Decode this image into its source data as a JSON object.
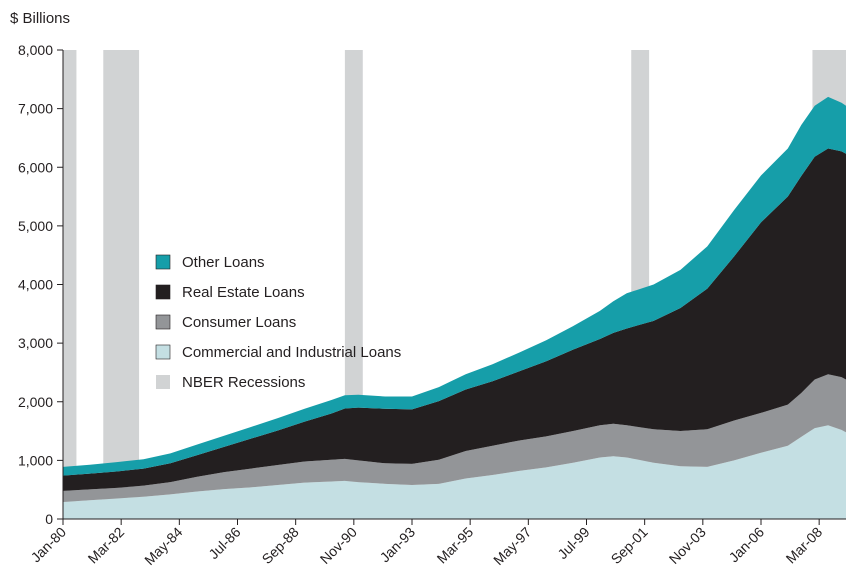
{
  "chart_data": {
    "type": "area",
    "stacked": true,
    "unit_label": "$ Billions",
    "ylim": [
      0,
      8000
    ],
    "y_ticks": [
      0,
      1000,
      2000,
      3000,
      4000,
      5000,
      6000,
      7000,
      8000
    ],
    "y_tick_labels": [
      "0",
      "1,000",
      "2,000",
      "3,000",
      "4,000",
      "5,000",
      "6,000",
      "7,000",
      "8,000"
    ],
    "x_range": [
      "1980-01",
      "2009-03"
    ],
    "x_tick_labels": [
      "Jan-80",
      "Mar-82",
      "May-84",
      "Jul-86",
      "Sep-88",
      "Nov-90",
      "Jan-93",
      "Mar-95",
      "May-97",
      "Jul-99",
      "Sep-01",
      "Nov-03",
      "Jan-06",
      "Mar-08"
    ],
    "x_ticks": [
      "1980-01",
      "1982-03",
      "1984-05",
      "1986-07",
      "1988-09",
      "1990-11",
      "1993-01",
      "1995-03",
      "1997-05",
      "1999-07",
      "2001-09",
      "2003-11",
      "2006-01",
      "2008-03"
    ],
    "grid": false,
    "legend_position": "center-left",
    "x": [
      "1980-01",
      "1981-01",
      "1982-01",
      "1983-01",
      "1984-01",
      "1985-01",
      "1986-01",
      "1987-01",
      "1988-01",
      "1989-01",
      "1990-01",
      "1990-07",
      "1991-01",
      "1992-01",
      "1993-01",
      "1994-01",
      "1995-01",
      "1996-01",
      "1997-01",
      "1998-01",
      "1999-01",
      "2000-01",
      "2000-07",
      "2001-01",
      "2002-01",
      "2003-01",
      "2004-01",
      "2005-01",
      "2006-01",
      "2007-01",
      "2007-07",
      "2008-01",
      "2008-07",
      "2009-01",
      "2009-03"
    ],
    "series": [
      {
        "name": "Commercial and Industrial Loans",
        "color": "#c4dfe3",
        "values": [
          290,
          320,
          350,
          380,
          420,
          470,
          510,
          540,
          580,
          620,
          640,
          650,
          630,
          600,
          580,
          600,
          690,
          750,
          820,
          880,
          960,
          1050,
          1070,
          1050,
          960,
          900,
          890,
          1000,
          1130,
          1250,
          1400,
          1550,
          1600,
          1520,
          1480
        ]
      },
      {
        "name": "Consumer Loans",
        "color": "#939598",
        "values": [
          190,
          185,
          180,
          190,
          210,
          250,
          290,
          320,
          340,
          360,
          370,
          375,
          370,
          350,
          360,
          410,
          470,
          500,
          520,
          530,
          540,
          550,
          555,
          550,
          570,
          600,
          640,
          680,
          680,
          700,
          750,
          830,
          870,
          900,
          900
        ]
      },
      {
        "name": "Real Estate Loans",
        "color": "#231f20",
        "values": [
          260,
          270,
          280,
          290,
          320,
          370,
          430,
          510,
          590,
          680,
          790,
          860,
          900,
          930,
          930,
          1000,
          1050,
          1100,
          1180,
          1280,
          1390,
          1470,
          1550,
          1650,
          1850,
          2100,
          2400,
          2800,
          3250,
          3550,
          3700,
          3800,
          3850,
          3850,
          3850
        ]
      },
      {
        "name": "Other Loans",
        "color": "#169ea9",
        "values": [
          150,
          150,
          160,
          160,
          170,
          180,
          190,
          200,
          210,
          220,
          230,
          225,
          220,
          210,
          220,
          240,
          260,
          290,
          320,
          360,
          400,
          480,
          540,
          600,
          620,
          650,
          720,
          790,
          800,
          820,
          870,
          870,
          880,
          830,
          820
        ]
      }
    ],
    "recessions": {
      "name": "NBER Recessions",
      "color": "#d1d3d4",
      "periods": [
        [
          "1980-01",
          "1980-07"
        ],
        [
          "1981-07",
          "1982-11"
        ],
        [
          "1990-07",
          "1991-03"
        ],
        [
          "2001-03",
          "2001-11"
        ],
        [
          "2007-12",
          "2009-03"
        ]
      ]
    }
  }
}
